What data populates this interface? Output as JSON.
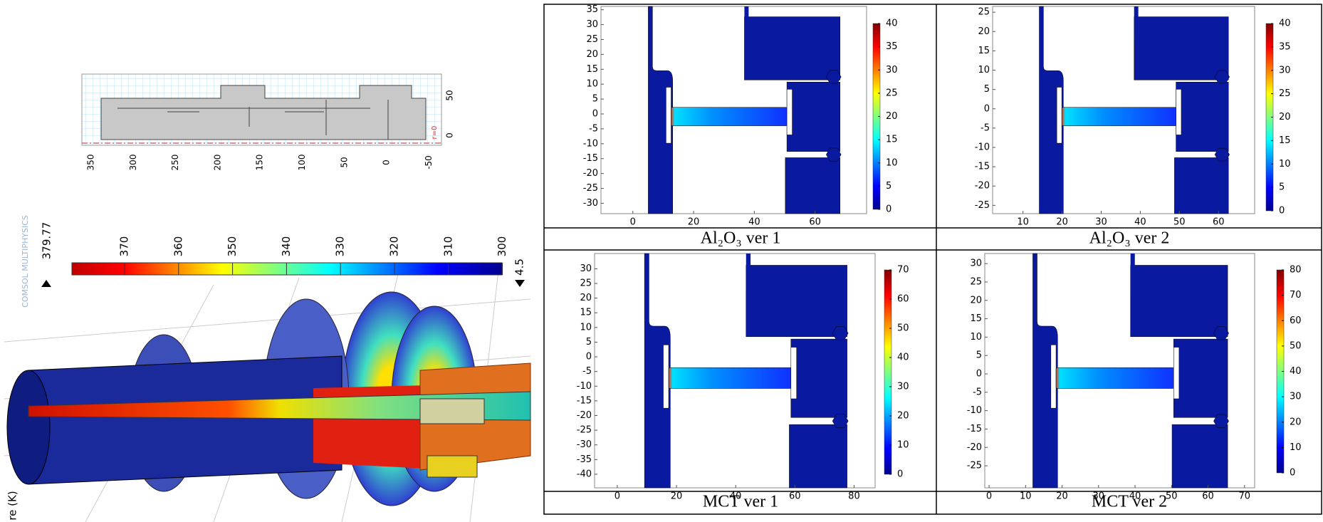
{
  "schematic": {
    "x_labels": [
      350,
      300,
      250,
      200,
      150,
      100,
      50,
      0,
      -50
    ],
    "y_labels": [
      50,
      0
    ],
    "axis_note": "r=0"
  },
  "render": {
    "logo": "COMSOL MULTIPHYSICS",
    "colorbar_max": "379.77",
    "colorbar_labels": [
      370,
      360,
      350,
      340,
      330,
      320,
      310,
      300
    ],
    "colorbar_min": "4.5",
    "axis_title": "re (K)"
  },
  "panels": [
    {
      "caption": "Al₂O₃ ver 1",
      "yticks": [
        35,
        30,
        25,
        20,
        15,
        10,
        5,
        0,
        -5,
        -10,
        -15,
        -20,
        -25,
        -30
      ],
      "xticks": [
        0,
        20,
        40,
        60
      ],
      "colorbar_ticks": [
        40,
        35,
        30,
        25,
        20,
        15,
        10,
        5,
        0
      ]
    },
    {
      "caption": "Al₂O₃ ver 2",
      "yticks": [
        25,
        20,
        15,
        10,
        5,
        0,
        -5,
        -10,
        -15,
        -20,
        -25
      ],
      "xticks": [
        10,
        20,
        30,
        40,
        50,
        60
      ],
      "colorbar_ticks": [
        40,
        35,
        30,
        25,
        20,
        15,
        10,
        5,
        0
      ]
    },
    {
      "caption": "MCT ver 1",
      "yticks": [
        30,
        25,
        20,
        15,
        10,
        5,
        0,
        -5,
        -10,
        -15,
        -20,
        -25,
        -30,
        -35,
        -40
      ],
      "xticks": [
        0,
        20,
        40,
        60,
        80
      ],
      "colorbar_ticks": [
        70,
        60,
        50,
        40,
        30,
        20,
        10,
        0
      ]
    },
    {
      "caption": "MCT ver 2",
      "yticks": [
        30,
        25,
        20,
        15,
        10,
        5,
        0,
        -5,
        -10,
        -15,
        -20,
        -25
      ],
      "xticks": [
        0,
        10,
        20,
        30,
        40,
        50,
        60,
        70
      ],
      "colorbar_ticks": [
        80,
        70,
        60,
        50,
        40,
        30,
        20,
        10,
        0
      ]
    }
  ]
}
